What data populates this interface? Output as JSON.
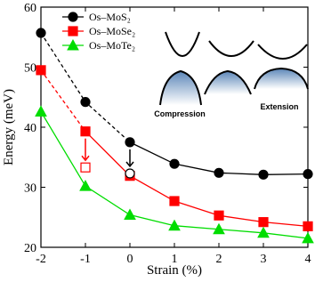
{
  "chart_data": {
    "type": "line",
    "x_label": "Strain (%)",
    "y_label": "Energy (meV)",
    "x": [
      -2,
      -1,
      0,
      1,
      2,
      3,
      4
    ],
    "series": [
      {
        "name": "Os–MoS₂",
        "color": "#000000",
        "marker": "circle",
        "dashed_until": 0,
        "values": [
          55.7,
          44.2,
          37.5,
          33.9,
          32.4,
          32.1,
          32.2
        ]
      },
      {
        "name": "Os–MoSe₂",
        "color": "#ff0000",
        "marker": "square",
        "dashed_until": -1,
        "values": [
          49.5,
          39.3,
          31.9,
          27.7,
          25.3,
          24.2,
          23.5
        ]
      },
      {
        "name": "Os–MoTe₂",
        "color": "#00dd00",
        "marker": "triangle",
        "values": [
          42.6,
          30.2,
          25.4,
          23.6,
          23.0,
          22.4,
          21.5
        ]
      }
    ],
    "hollow_markers": [
      {
        "series": 0,
        "x": 0,
        "y": 32.3,
        "color": "#000000"
      },
      {
        "series": 1,
        "x": -1,
        "y": 33.3,
        "color": "#ff0000"
      }
    ],
    "xlim": [
      -2,
      4
    ],
    "xticks": [
      -2,
      -1,
      0,
      1,
      2,
      3,
      4
    ],
    "ylim": [
      20,
      60
    ],
    "yticks": [
      20,
      30,
      40,
      50,
      60
    ],
    "legend": "upper left",
    "annotations": [
      "Compression",
      "Extension"
    ]
  }
}
